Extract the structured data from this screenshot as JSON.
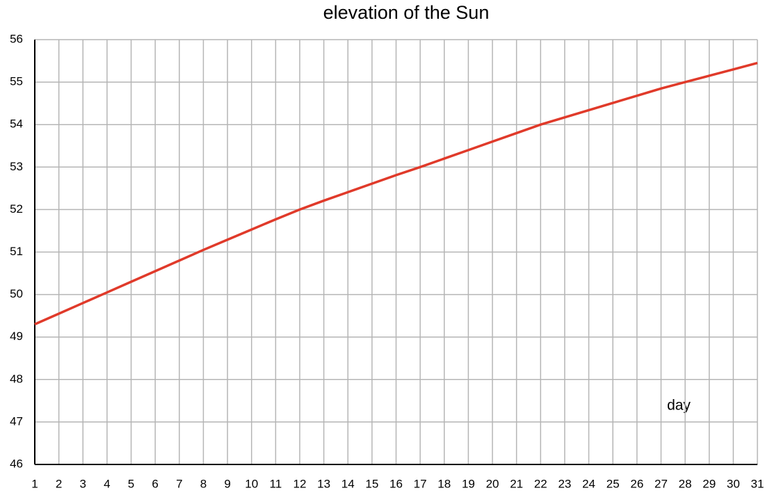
{
  "chart_data": {
    "type": "line",
    "title": "elevation of the Sun",
    "annotation": "day",
    "x": [
      1,
      2,
      3,
      4,
      5,
      6,
      7,
      8,
      9,
      10,
      11,
      12,
      13,
      14,
      15,
      16,
      17,
      18,
      19,
      20,
      21,
      22,
      23,
      24,
      25,
      26,
      27,
      28,
      29,
      30,
      31
    ],
    "series": [
      {
        "name": "elevation",
        "color": "#e03a2a",
        "values": [
          49.3,
          49.55,
          49.8,
          50.05,
          50.3,
          50.55,
          50.8,
          51.05,
          51.29,
          51.53,
          51.77,
          52.0,
          52.21,
          52.41,
          52.61,
          52.81,
          53.0,
          53.2,
          53.4,
          53.6,
          53.8,
          54.0,
          54.17,
          54.34,
          54.51,
          54.68,
          54.85,
          55.0,
          55.15,
          55.3,
          55.45
        ]
      }
    ],
    "xlim": [
      1,
      31
    ],
    "xticks": [
      1,
      2,
      3,
      4,
      5,
      6,
      7,
      8,
      9,
      10,
      11,
      12,
      13,
      14,
      15,
      16,
      17,
      18,
      19,
      20,
      21,
      22,
      23,
      24,
      25,
      26,
      27,
      28,
      29,
      30,
      31
    ],
    "ylim": [
      46,
      56
    ],
    "yticks": [
      46,
      47,
      48,
      49,
      50,
      51,
      52,
      53,
      54,
      55,
      56
    ],
    "grid": true
  }
}
